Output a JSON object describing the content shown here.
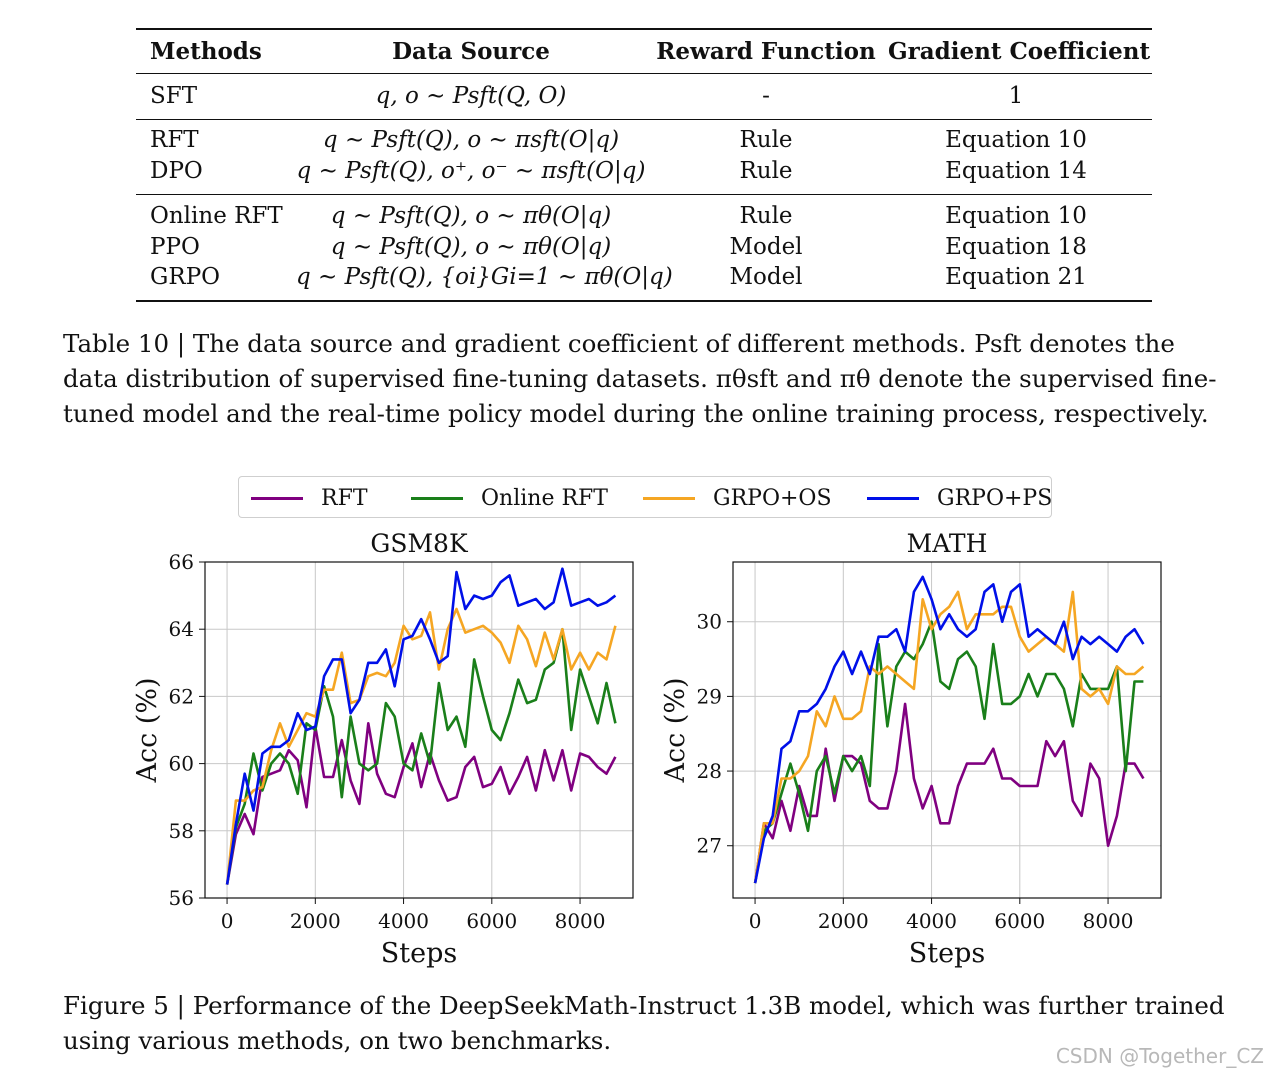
{
  "table": {
    "headers": [
      "Methods",
      "Data Source",
      "Reward Function",
      "Gradient Coefficient"
    ],
    "rows": [
      {
        "method": "SFT",
        "source": "q, o ∼ Psft(Q, O)",
        "reward": "-",
        "coef": "1"
      },
      {
        "method": "RFT",
        "source": "q ∼ Psft(Q), o ∼ πsft(O|q)",
        "reward": "Rule",
        "coef": "Equation 10"
      },
      {
        "method": "DPO",
        "source": "q ∼ Psft(Q), o⁺, o⁻ ∼ πsft(O|q)",
        "reward": "Rule",
        "coef": "Equation 14"
      },
      {
        "method": "Online RFT",
        "source": "q ∼ Psft(Q), o ∼ πθ(O|q)",
        "reward": "Rule",
        "coef": "Equation 10"
      },
      {
        "method": "PPO",
        "source": "q ∼ Psft(Q), o ∼ πθ(O|q)",
        "reward": "Model",
        "coef": "Equation 18"
      },
      {
        "method": "GRPO",
        "source": "q ∼ Psft(Q), {oi}Gi=1 ∼ πθ(O|q)",
        "reward": "Model",
        "coef": "Equation 21"
      }
    ]
  },
  "table_caption": {
    "label": "Table 10 |",
    "text": "The data source and gradient coefficient of different methods. Psft denotes the data distribution of supervised fine-tuning datasets. πθsft and πθ denote the supervised fine-tuned model and the real-time policy model during the online training process, respectively."
  },
  "figure_caption": {
    "label": "Figure 5 |",
    "text": "Performance of the DeepSeekMath-Instruct 1.3B model, which was further trained using various methods, on two benchmarks."
  },
  "watermark": "CSDN @Together_CZ",
  "colors": {
    "RFT": "#800080",
    "Online RFT": "#1a7f1a",
    "GRPO+OS": "#f5a623",
    "GRPO+PS": "#0010e8"
  },
  "legend": [
    "RFT",
    "Online RFT",
    "GRPO+OS",
    "GRPO+PS"
  ],
  "chart_data": [
    {
      "type": "line",
      "title": "GSM8K",
      "xlabel": "Steps",
      "ylabel": "Acc (%)",
      "xlim": [
        -500,
        9200
      ],
      "ylim": [
        56,
        66
      ],
      "xticks": [
        0,
        2000,
        4000,
        6000,
        8000
      ],
      "yticks": [
        56,
        58,
        60,
        62,
        64,
        66
      ],
      "grid": true,
      "x": [
        0,
        200,
        400,
        600,
        800,
        1000,
        1200,
        1400,
        1600,
        1800,
        2000,
        2200,
        2400,
        2600,
        2800,
        3000,
        3200,
        3400,
        3600,
        3800,
        4000,
        4200,
        4400,
        4600,
        4800,
        5000,
        5200,
        5400,
        5600,
        5800,
        6000,
        6200,
        6400,
        6600,
        6800,
        7000,
        7200,
        7400,
        7600,
        7800,
        8000,
        8200,
        8400,
        8600,
        8800
      ],
      "series": [
        {
          "name": "RFT",
          "values": [
            56.4,
            57.9,
            58.5,
            57.9,
            59.6,
            59.7,
            59.8,
            60.4,
            60.1,
            58.7,
            61.1,
            59.6,
            59.6,
            60.7,
            59.5,
            58.8,
            61.2,
            59.7,
            59.1,
            59.0,
            59.9,
            60.6,
            59.3,
            60.3,
            59.5,
            58.9,
            59.0,
            59.9,
            60.2,
            59.3,
            59.4,
            59.9,
            59.1,
            59.6,
            60.2,
            59.2,
            60.4,
            59.5,
            60.4,
            59.2,
            60.3,
            60.2,
            59.9,
            59.7,
            60.2
          ]
        },
        {
          "name": "Online RFT",
          "values": [
            56.4,
            58.1,
            58.8,
            60.3,
            59.2,
            60.0,
            60.3,
            60.0,
            59.1,
            61.2,
            61.0,
            62.3,
            61.4,
            59.0,
            61.4,
            60.0,
            59.8,
            60.0,
            61.8,
            61.4,
            60.0,
            59.8,
            60.9,
            60.0,
            62.4,
            61.0,
            61.4,
            60.5,
            63.1,
            62.0,
            61.0,
            60.7,
            61.5,
            62.5,
            61.8,
            61.9,
            62.8,
            63.0,
            64.0,
            61.0,
            62.8,
            62.0,
            61.2,
            62.4,
            61.2
          ]
        },
        {
          "name": "GRPO+OS",
          "values": [
            56.4,
            58.9,
            58.9,
            59.2,
            59.3,
            60.4,
            61.2,
            60.5,
            61.0,
            61.5,
            61.4,
            62.2,
            62.2,
            63.3,
            61.8,
            61.9,
            62.6,
            62.7,
            62.6,
            63.0,
            64.1,
            63.7,
            63.8,
            64.5,
            62.8,
            64.0,
            64.6,
            63.9,
            64.0,
            64.1,
            63.9,
            63.6,
            63.0,
            64.1,
            63.7,
            62.9,
            63.9,
            63.1,
            64.0,
            62.8,
            63.3,
            62.8,
            63.3,
            63.1,
            64.1
          ]
        },
        {
          "name": "GRPO+PS",
          "values": [
            56.4,
            58.2,
            59.7,
            58.6,
            60.3,
            60.5,
            60.5,
            60.7,
            61.5,
            61.0,
            61.1,
            62.6,
            63.1,
            63.1,
            61.5,
            61.9,
            63.0,
            63.0,
            63.4,
            62.3,
            63.7,
            63.8,
            64.3,
            63.7,
            63.0,
            63.2,
            65.7,
            64.6,
            65.0,
            64.9,
            65.0,
            65.4,
            65.6,
            64.7,
            64.8,
            64.9,
            64.6,
            64.8,
            65.8,
            64.7,
            64.8,
            64.9,
            64.7,
            64.8,
            65.0
          ]
        }
      ]
    },
    {
      "type": "line",
      "title": "MATH",
      "xlabel": "Steps",
      "ylabel": "Acc (%)",
      "xlim": [
        -500,
        9200
      ],
      "ylim": [
        26.3,
        30.8
      ],
      "xticks": [
        0,
        2000,
        4000,
        6000,
        8000
      ],
      "yticks": [
        27,
        28,
        29,
        30
      ],
      "grid": true,
      "x": [
        0,
        200,
        400,
        600,
        800,
        1000,
        1200,
        1400,
        1600,
        1800,
        2000,
        2200,
        2400,
        2600,
        2800,
        3000,
        3200,
        3400,
        3600,
        3800,
        4000,
        4200,
        4400,
        4600,
        4800,
        5000,
        5200,
        5400,
        5600,
        5800,
        6000,
        6200,
        6400,
        6600,
        6800,
        7000,
        7200,
        7400,
        7600,
        7800,
        8000,
        8200,
        8400,
        8600,
        8800
      ],
      "series": [
        {
          "name": "RFT",
          "values": [
            26.5,
            27.3,
            27.1,
            27.6,
            27.2,
            27.8,
            27.4,
            27.4,
            28.3,
            27.6,
            28.2,
            28.2,
            28.1,
            27.6,
            27.5,
            27.5,
            28.0,
            28.9,
            27.9,
            27.5,
            27.8,
            27.3,
            27.3,
            27.8,
            28.1,
            28.1,
            28.1,
            28.3,
            27.9,
            27.9,
            27.8,
            27.8,
            27.8,
            28.4,
            28.2,
            28.4,
            27.6,
            27.4,
            28.1,
            27.9,
            27.0,
            27.4,
            28.1,
            28.1,
            27.9
          ]
        },
        {
          "name": "Online RFT",
          "values": [
            26.5,
            27.2,
            27.3,
            27.7,
            28.1,
            27.7,
            27.2,
            28.0,
            28.2,
            27.7,
            28.2,
            28.0,
            28.2,
            27.8,
            29.7,
            28.6,
            29.4,
            29.6,
            29.5,
            29.7,
            30.0,
            29.2,
            29.1,
            29.5,
            29.6,
            29.4,
            28.7,
            29.7,
            28.9,
            28.9,
            29.0,
            29.3,
            29.0,
            29.3,
            29.3,
            29.1,
            28.6,
            29.3,
            29.1,
            29.1,
            29.1,
            29.4,
            28.0,
            29.2,
            29.2
          ]
        },
        {
          "name": "GRPO+OS",
          "values": [
            26.5,
            27.3,
            27.3,
            27.9,
            27.9,
            28.0,
            28.2,
            28.8,
            28.6,
            29.0,
            28.7,
            28.7,
            28.8,
            29.4,
            29.3,
            29.4,
            29.3,
            29.2,
            29.1,
            30.3,
            29.9,
            30.1,
            30.2,
            30.4,
            29.9,
            30.1,
            30.1,
            30.1,
            30.2,
            30.2,
            29.8,
            29.6,
            29.7,
            29.8,
            29.7,
            29.6,
            30.4,
            29.1,
            29.0,
            29.1,
            28.9,
            29.4,
            29.3,
            29.3,
            29.4
          ]
        },
        {
          "name": "GRPO+PS",
          "values": [
            26.5,
            27.1,
            27.4,
            28.3,
            28.4,
            28.8,
            28.8,
            28.9,
            29.1,
            29.4,
            29.6,
            29.3,
            29.6,
            29.3,
            29.8,
            29.8,
            29.9,
            29.6,
            30.4,
            30.6,
            30.3,
            29.9,
            30.1,
            29.9,
            29.8,
            29.9,
            30.4,
            30.5,
            30.0,
            30.4,
            30.5,
            29.8,
            29.9,
            29.8,
            29.7,
            30.0,
            29.5,
            29.8,
            29.7,
            29.8,
            29.7,
            29.6,
            29.8,
            29.9,
            29.7
          ]
        }
      ]
    }
  ]
}
